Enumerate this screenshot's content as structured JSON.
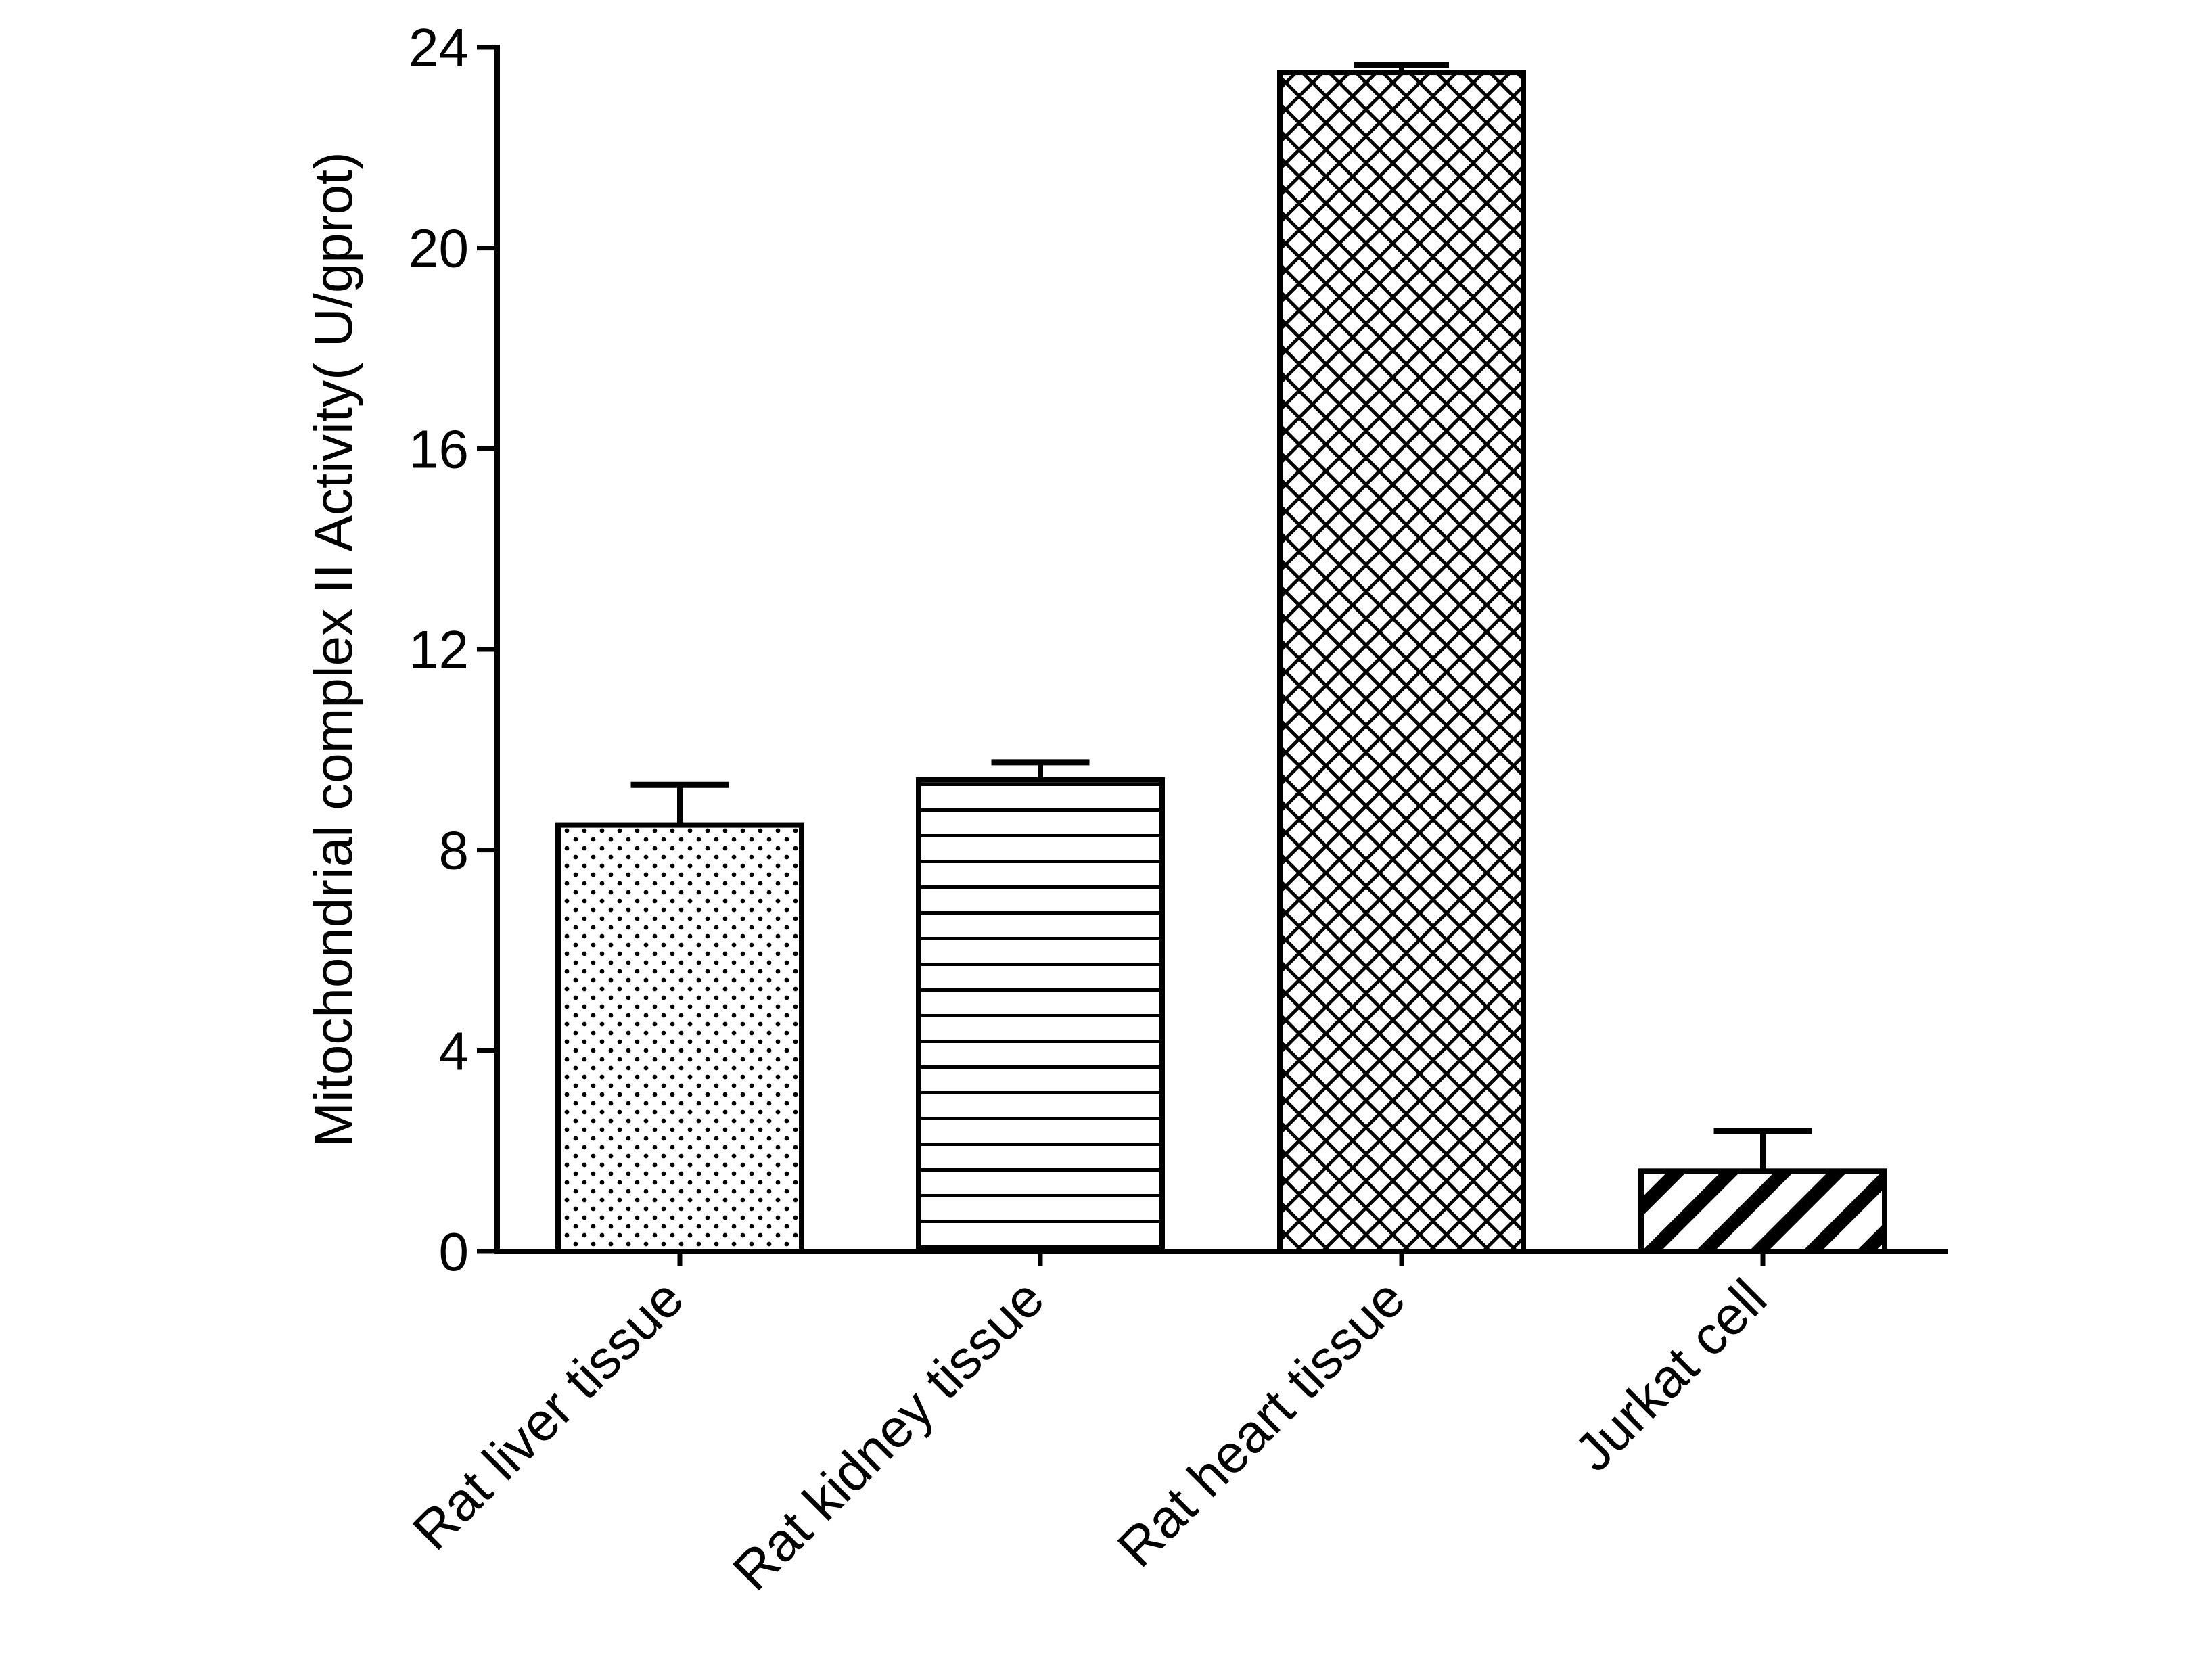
{
  "chart_data": {
    "type": "bar",
    "title": "",
    "xlabel": "",
    "ylabel": "Mitochondrial  complex II Activity( U/gprot)",
    "ylim": [
      0,
      24
    ],
    "yticks": [
      0,
      4,
      8,
      12,
      16,
      20,
      24
    ],
    "grid": false,
    "legend": "none",
    "categories": [
      "Rat liver tissue",
      "Rat kidney tissue",
      "Rat heart tissue",
      "Jurkat cell"
    ],
    "values": [
      8.5,
      9.4,
      23.5,
      1.6
    ],
    "errors": [
      0.8,
      0.35,
      0.15,
      0.8
    ],
    "patterns": [
      "dots",
      "horizontal-lines",
      "crosshatch",
      "diagonal-stripes"
    ],
    "colors": {
      "axis": "#000000",
      "bar_fill": "#ffffff",
      "bar_stroke": "#000000"
    }
  }
}
